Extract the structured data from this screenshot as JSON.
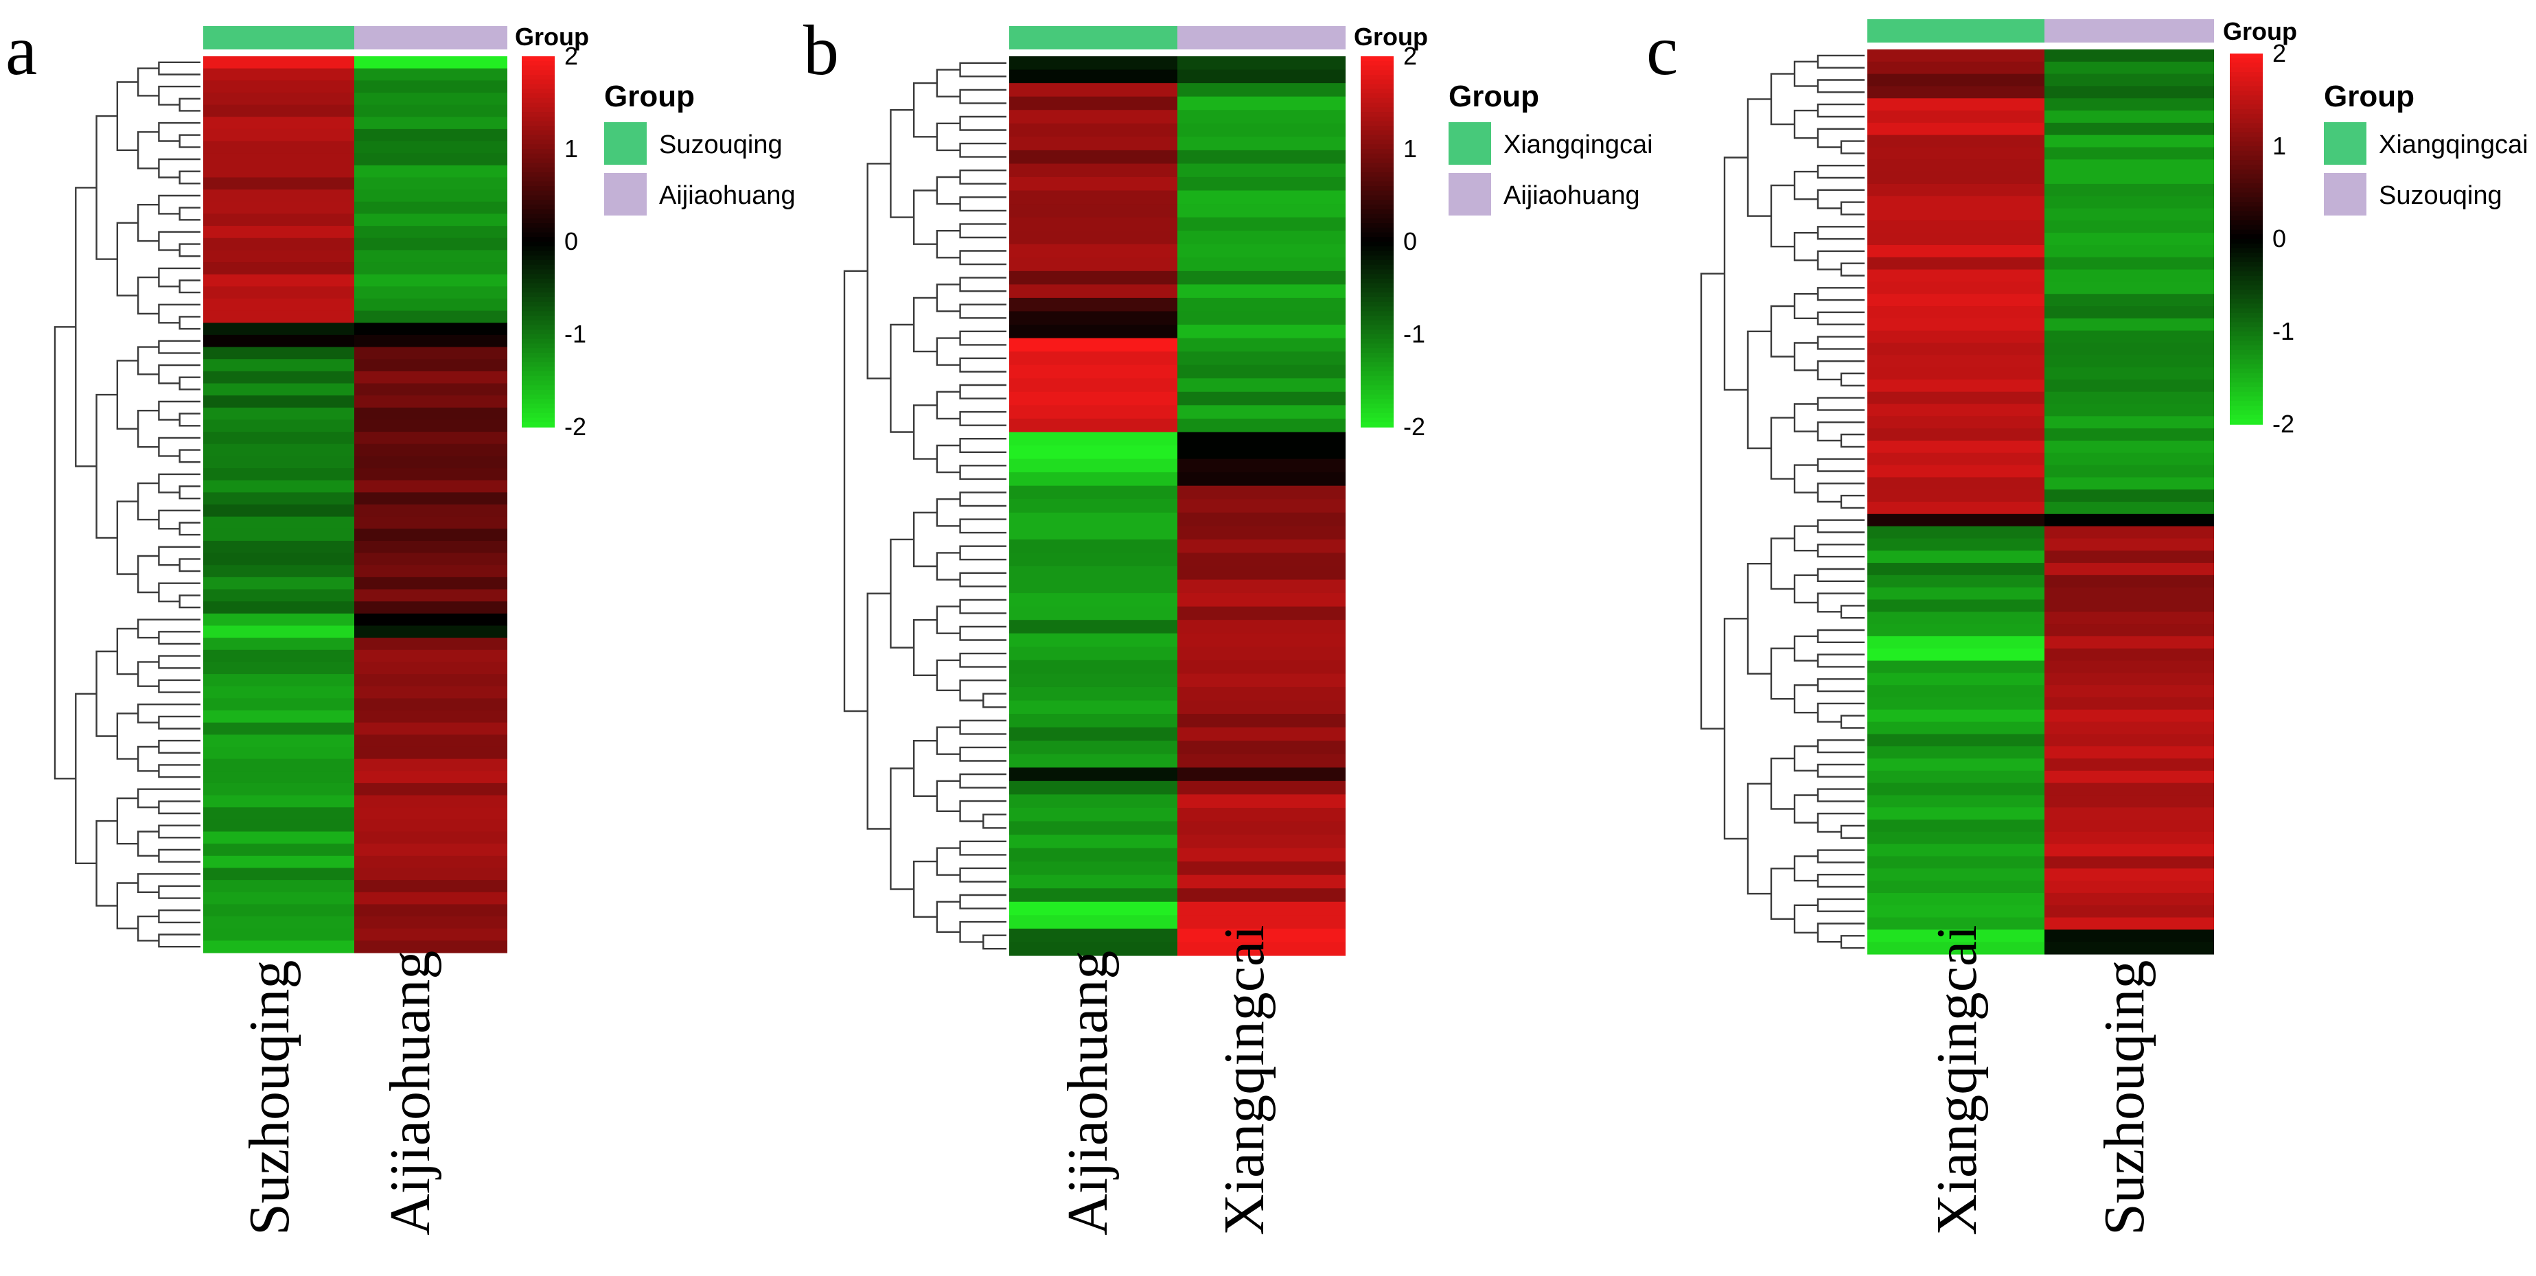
{
  "colors": {
    "group_green": "#47c97a",
    "group_purple": "#c3b1d6",
    "scale_high": "#ff1a1a",
    "scale_mid": "#000000",
    "scale_low": "#22ee22",
    "dendrogram": "#3a3a3a"
  },
  "chart_data": [
    {
      "type": "heatmap",
      "panel": "a",
      "columns": [
        "Suzhouqing",
        "Aijiaohuang"
      ],
      "group_bar_label": "Group",
      "legend": {
        "title": "Group",
        "entries": [
          {
            "label": "Suzouqing",
            "color": "#47c97a"
          },
          {
            "label": "Aijiaohuang",
            "color": "#c3b1d6"
          }
        ]
      },
      "color_scale": {
        "min": -2,
        "max": 2,
        "ticks": [
          "2",
          "1",
          "0",
          "-1",
          "-2"
        ]
      },
      "blocks": [
        {
          "rows": 22,
          "col1": 1.3,
          "col2": -1.2
        },
        {
          "rows": 2,
          "col1": 0.0,
          "col2": 0.2
        },
        {
          "rows": 22,
          "col1": -1.0,
          "col2": 0.8
        },
        {
          "rows": 2,
          "col1": -1.6,
          "col2": 0.0
        },
        {
          "rows": 26,
          "col1": -1.3,
          "col2": 1.2
        }
      ],
      "highlight_rows": [
        {
          "index": 0,
          "col1": 2.0,
          "col2": -2.0
        }
      ]
    },
    {
      "type": "heatmap",
      "panel": "b",
      "columns": [
        "Aijiaohuang",
        "Xiangqingcai"
      ],
      "group_bar_label": "Group",
      "legend": {
        "title": "Group",
        "entries": [
          {
            "label": "Xiangqingcai",
            "color": "#47c97a"
          },
          {
            "label": "Aijiaohuang",
            "color": "#c3b1d6"
          }
        ]
      },
      "color_scale": {
        "min": -2,
        "max": 2,
        "ticks": [
          "2",
          "1",
          "0",
          "-1",
          "-2"
        ]
      },
      "blocks": [
        {
          "rows": 2,
          "col1": 0.0,
          "col2": -0.5
        },
        {
          "rows": 16,
          "col1": 1.1,
          "col2": -1.3
        },
        {
          "rows": 3,
          "col1": 0.3,
          "col2": -1.3
        },
        {
          "rows": 7,
          "col1": 1.7,
          "col2": -1.2
        },
        {
          "rows": 4,
          "col1": -1.8,
          "col2": 0.2
        },
        {
          "rows": 21,
          "col1": -1.2,
          "col2": 1.2
        },
        {
          "rows": 1,
          "col1": 0.0,
          "col2": 0.4
        },
        {
          "rows": 9,
          "col1": -1.2,
          "col2": 1.3
        },
        {
          "rows": 2,
          "col1": -1.9,
          "col2": 1.9
        },
        {
          "rows": 2,
          "col1": -1.0,
          "col2": 1.9
        }
      ]
    },
    {
      "type": "heatmap",
      "panel": "c",
      "columns": [
        "Xiangqingcai",
        "Suzhouqing"
      ],
      "group_bar_label": "Group",
      "legend": {
        "title": "Group",
        "entries": [
          {
            "label": "Xiangqingcai",
            "color": "#47c97a"
          },
          {
            "label": "Suzouqing",
            "color": "#c3b1d6"
          }
        ]
      },
      "color_scale": {
        "min": -2,
        "max": 2,
        "ticks": [
          "2",
          "1",
          "0",
          "-1",
          "-2"
        ]
      },
      "blocks": [
        {
          "rows": 4,
          "col1": 1.0,
          "col2": -0.9
        },
        {
          "rows": 34,
          "col1": 1.5,
          "col2": -1.2
        },
        {
          "rows": 1,
          "col1": 0.0,
          "col2": 0.0
        },
        {
          "rows": 9,
          "col1": -1.2,
          "col2": 1.2
        },
        {
          "rows": 2,
          "col1": -1.8,
          "col2": 1.2
        },
        {
          "rows": 22,
          "col1": -1.3,
          "col2": 1.4
        },
        {
          "rows": 2,
          "col1": -1.8,
          "col2": 0.0
        }
      ]
    }
  ]
}
